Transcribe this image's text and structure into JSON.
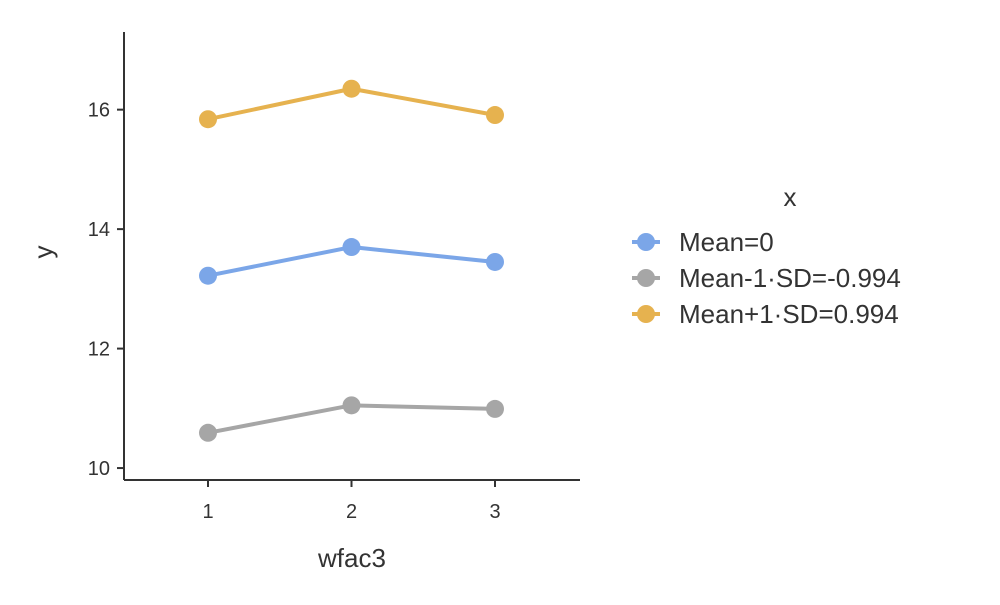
{
  "chart_data": {
    "type": "line",
    "title": "",
    "xlabel": "wfac3",
    "ylabel": "y",
    "categories": [
      "1",
      "2",
      "3"
    ],
    "ylim": [
      9.8,
      17.3
    ],
    "yticks": [
      10,
      12,
      14,
      16
    ],
    "grid": false,
    "legend_position": "right",
    "legend_title": "x",
    "series": [
      {
        "name": "Mean=0",
        "color": "#7BA6E8",
        "values": [
          13.22,
          13.7,
          13.45
        ]
      },
      {
        "name": "Mean-1·SD=-0.994",
        "color": "#A6A6A6",
        "values": [
          10.59,
          11.05,
          10.99
        ]
      },
      {
        "name": "Mean+1·SD=0.994",
        "color": "#E6B24F",
        "values": [
          15.84,
          16.35,
          15.91
        ]
      }
    ]
  }
}
